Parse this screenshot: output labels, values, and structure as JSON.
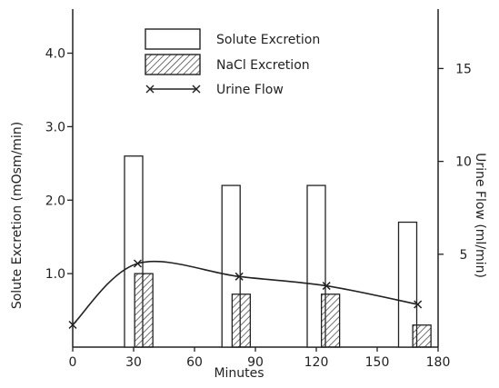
{
  "chart_data": {
    "type": "bar",
    "xlabel": "Minutes",
    "ylabel_left": "Solute Excretion (mOsm/min)",
    "ylabel_right": "Urine Flow (ml/min)",
    "x_ticks": [
      "0",
      "30",
      "60",
      "90",
      "120",
      "150",
      "180"
    ],
    "y_left_ticks": [
      "1.0",
      "2.0",
      "3.0",
      "4.0"
    ],
    "y_right_ticks": [
      "5",
      "10",
      "15"
    ],
    "xlim": [
      0,
      180
    ],
    "ylim_left": [
      0,
      4.6
    ],
    "ylim_right": [
      0,
      18.2
    ],
    "legend_position": "top-center",
    "series": [
      {
        "name": "Solute Excretion",
        "kind": "bar",
        "axis": "left",
        "x": [
          30,
          78,
          120,
          165
        ],
        "values": [
          2.6,
          2.2,
          2.2,
          1.7
        ]
      },
      {
        "name": "NaCl Excretion",
        "kind": "bar",
        "axis": "left",
        "pattern": "hatched",
        "x": [
          35,
          83,
          127,
          172
        ],
        "values": [
          1.0,
          0.72,
          0.72,
          0.3
        ]
      },
      {
        "name": "Urine Flow",
        "kind": "line",
        "axis": "right",
        "marker": "x",
        "x": [
          0,
          32,
          82,
          125,
          170
        ],
        "values": [
          1.2,
          4.5,
          3.8,
          3.3,
          2.3
        ]
      }
    ]
  }
}
